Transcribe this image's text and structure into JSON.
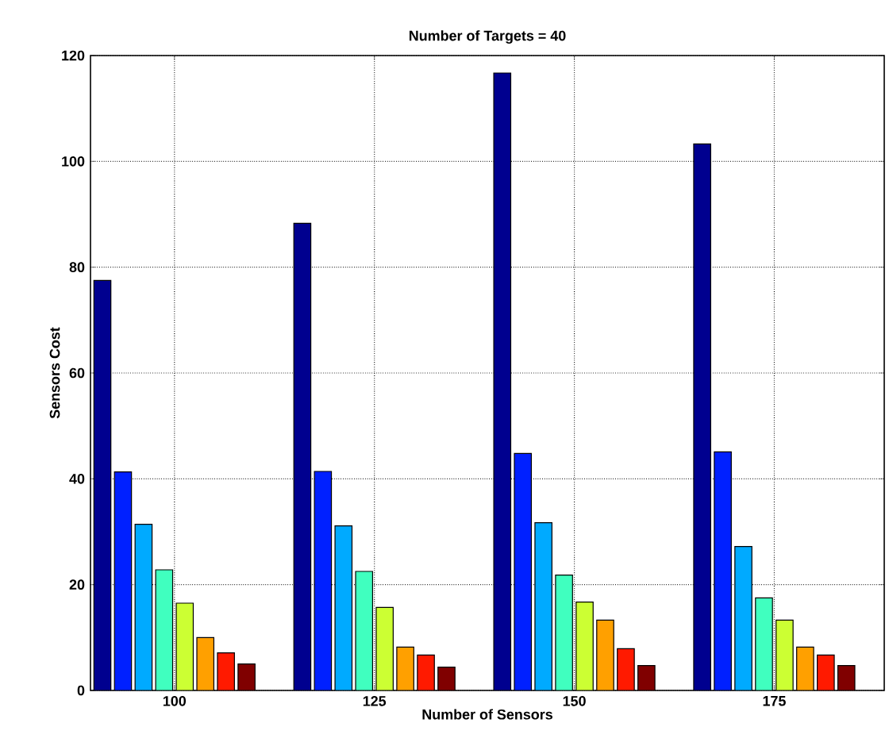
{
  "chart_data": {
    "type": "bar",
    "title": "Number of Targets = 40",
    "xlabel": "Number of Sensors",
    "ylabel": "Sensors Cost",
    "categories": [
      "100",
      "125",
      "150",
      "175"
    ],
    "series": [
      {
        "color": "#00008f",
        "values": [
          77.5,
          88.3,
          116.7,
          103.3
        ]
      },
      {
        "color": "#0020ff",
        "values": [
          41.3,
          41.4,
          44.8,
          45.1
        ]
      },
      {
        "color": "#00aaff",
        "values": [
          31.4,
          31.1,
          31.7,
          27.2
        ]
      },
      {
        "color": "#40ffbf",
        "values": [
          22.8,
          22.5,
          21.8,
          17.5
        ]
      },
      {
        "color": "#ccff33",
        "values": [
          16.5,
          15.7,
          16.7,
          13.3
        ]
      },
      {
        "color": "#ffa000",
        "values": [
          10,
          8.2,
          13.3,
          8.2
        ]
      },
      {
        "color": "#ff1a00",
        "values": [
          7.1,
          6.7,
          7.9,
          6.7
        ]
      },
      {
        "color": "#800000",
        "values": [
          5,
          4.4,
          4.7,
          4.7
        ]
      }
    ],
    "ylim": [
      0,
      120
    ],
    "yticks": [
      0,
      20,
      40,
      60,
      80,
      100,
      120
    ],
    "grid": true
  }
}
